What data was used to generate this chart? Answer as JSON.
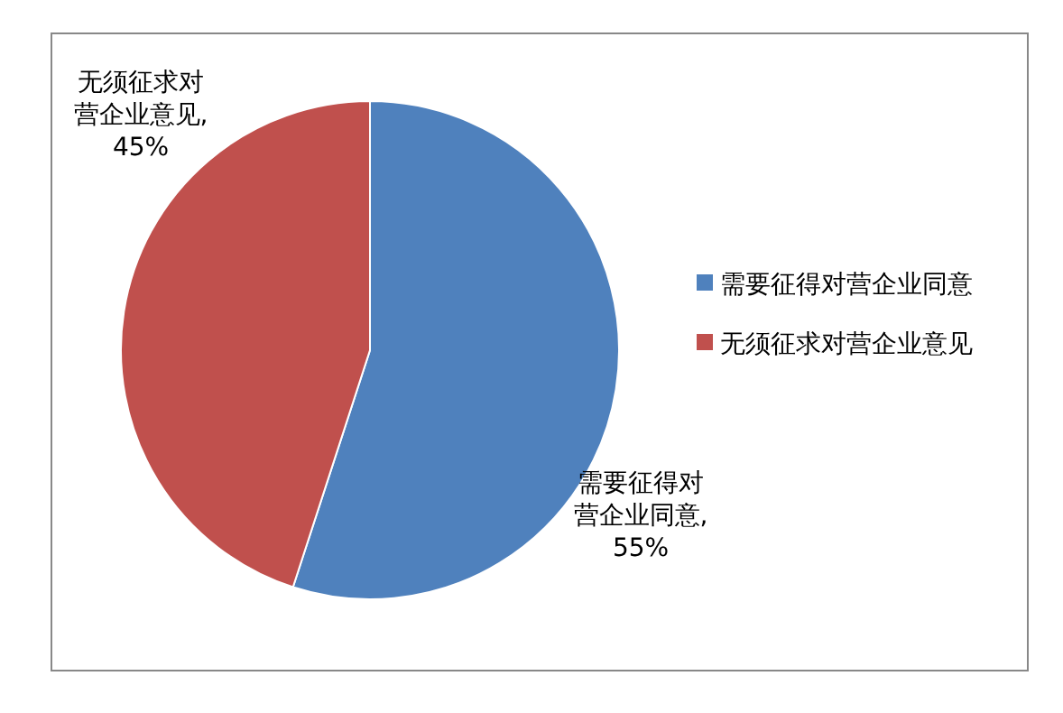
{
  "chart_data": {
    "type": "pie",
    "categories": [
      "需要征得对营企业同意",
      "无须征求对营企业意见"
    ],
    "values": [
      55,
      45
    ],
    "colors": [
      "#4f81bd",
      "#c0504d"
    ],
    "value_labels": [
      "需要征得对营企业同意, 55%",
      "无须征求对营企业意见, 45%"
    ],
    "legend": "right"
  }
}
